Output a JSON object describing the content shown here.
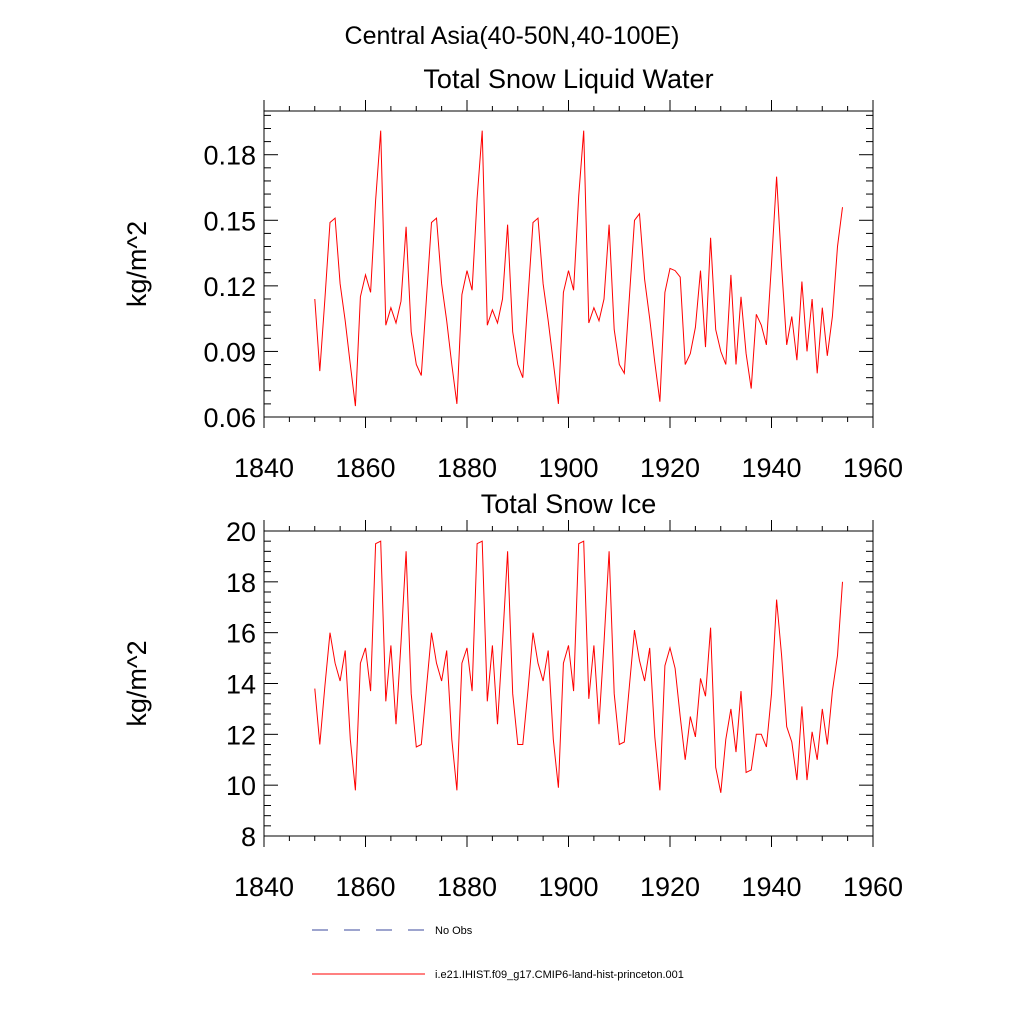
{
  "main_title": "Central Asia(40-50N,40-100E)",
  "legend": {
    "entries": [
      {
        "label": "No Obs",
        "color": "#3b4a9e",
        "style": "dashed"
      },
      {
        "label": "i.e21.IHIST.f09_g17.CMIP6-land-hist-princeton.001",
        "color": "#ff0000",
        "style": "solid"
      }
    ]
  },
  "chart_data": [
    {
      "type": "line",
      "title": "Total Snow Liquid Water",
      "xlabel": "",
      "ylabel": "kg/m^2",
      "xlim": [
        1840,
        1960
      ],
      "ylim": [
        0.06,
        0.2
      ],
      "xticks": [
        1840,
        1860,
        1880,
        1900,
        1920,
        1940,
        1960
      ],
      "xtick_labels": [
        "1840",
        "1860",
        "1880",
        "1900",
        "1920",
        "1940",
        "1960"
      ],
      "yticks": [
        0.06,
        0.09,
        0.12,
        0.15,
        0.18
      ],
      "ytick_labels": [
        "0.06",
        "0.09",
        "0.12",
        "0.15",
        "0.18"
      ],
      "grid": false,
      "series": [
        {
          "color": "#ff0000",
          "x": [
            1850,
            1851,
            1852,
            1853,
            1854,
            1855,
            1856,
            1857,
            1858,
            1859,
            1860,
            1861,
            1862,
            1863,
            1864,
            1865,
            1866,
            1867,
            1868,
            1869,
            1870,
            1871,
            1872,
            1873,
            1874,
            1875,
            1876,
            1877,
            1878,
            1879,
            1880,
            1881,
            1882,
            1883,
            1884,
            1885,
            1886,
            1887,
            1888,
            1889,
            1890,
            1891,
            1892,
            1893,
            1894,
            1895,
            1896,
            1897,
            1898,
            1899,
            1900,
            1901,
            1902,
            1903,
            1904,
            1905,
            1906,
            1907,
            1908,
            1909,
            1910,
            1911,
            1912,
            1913,
            1914,
            1915,
            1916,
            1917,
            1918,
            1919,
            1920,
            1921,
            1922,
            1923,
            1924,
            1925,
            1926,
            1927,
            1928,
            1929,
            1930,
            1931,
            1932,
            1933,
            1934,
            1935,
            1936,
            1937,
            1938,
            1939,
            1940,
            1941,
            1942,
            1943,
            1944,
            1945,
            1946,
            1947,
            1948,
            1949,
            1950,
            1951,
            1952,
            1953,
            1954
          ],
          "values": [
            0.114,
            0.081,
            0.114,
            0.149,
            0.151,
            0.121,
            0.104,
            0.084,
            0.065,
            0.115,
            0.125,
            0.117,
            0.159,
            0.191,
            0.102,
            0.11,
            0.103,
            0.113,
            0.147,
            0.099,
            0.084,
            0.079,
            0.114,
            0.149,
            0.151,
            0.121,
            0.104,
            0.084,
            0.066,
            0.116,
            0.127,
            0.118,
            0.16,
            0.191,
            0.102,
            0.109,
            0.103,
            0.114,
            0.148,
            0.099,
            0.084,
            0.078,
            0.114,
            0.149,
            0.151,
            0.121,
            0.104,
            0.085,
            0.066,
            0.117,
            0.127,
            0.118,
            0.161,
            0.191,
            0.103,
            0.11,
            0.104,
            0.114,
            0.148,
            0.1,
            0.084,
            0.08,
            0.115,
            0.15,
            0.153,
            0.123,
            0.105,
            0.085,
            0.067,
            0.117,
            0.128,
            0.127,
            0.124,
            0.084,
            0.089,
            0.101,
            0.127,
            0.092,
            0.142,
            0.1,
            0.09,
            0.084,
            0.125,
            0.084,
            0.115,
            0.089,
            0.073,
            0.107,
            0.102,
            0.093,
            0.13,
            0.17,
            0.129,
            0.093,
            0.106,
            0.086,
            0.122,
            0.09,
            0.114,
            0.08,
            0.11,
            0.088,
            0.106,
            0.138,
            0.156
          ]
        }
      ]
    },
    {
      "type": "line",
      "title": "Total Snow Ice",
      "xlabel": "",
      "ylabel": "kg/m^2",
      "xlim": [
        1840,
        1960
      ],
      "ylim": [
        8,
        20
      ],
      "xticks": [
        1840,
        1860,
        1880,
        1900,
        1920,
        1940,
        1960
      ],
      "xtick_labels": [
        "1840",
        "1860",
        "1880",
        "1900",
        "1920",
        "1940",
        "1960"
      ],
      "yticks": [
        8,
        10,
        12,
        14,
        16,
        18,
        20
      ],
      "ytick_labels": [
        "8",
        "10",
        "12",
        "14",
        "16",
        "18",
        "20"
      ],
      "grid": false,
      "series": [
        {
          "color": "#ff0000",
          "x": [
            1850,
            1851,
            1852,
            1853,
            1854,
            1855,
            1856,
            1857,
            1858,
            1859,
            1860,
            1861,
            1862,
            1863,
            1864,
            1865,
            1866,
            1867,
            1868,
            1869,
            1870,
            1871,
            1872,
            1873,
            1874,
            1875,
            1876,
            1877,
            1878,
            1879,
            1880,
            1881,
            1882,
            1883,
            1884,
            1885,
            1886,
            1887,
            1888,
            1889,
            1890,
            1891,
            1892,
            1893,
            1894,
            1895,
            1896,
            1897,
            1898,
            1899,
            1900,
            1901,
            1902,
            1903,
            1904,
            1905,
            1906,
            1907,
            1908,
            1909,
            1910,
            1911,
            1912,
            1913,
            1914,
            1915,
            1916,
            1917,
            1918,
            1919,
            1920,
            1921,
            1922,
            1923,
            1924,
            1925,
            1926,
            1927,
            1928,
            1929,
            1930,
            1931,
            1932,
            1933,
            1934,
            1935,
            1936,
            1937,
            1938,
            1939,
            1940,
            1941,
            1942,
            1943,
            1944,
            1945,
            1946,
            1947,
            1948,
            1949,
            1950,
            1951,
            1952,
            1953,
            1954
          ],
          "values": [
            13.8,
            11.6,
            13.9,
            16.0,
            14.8,
            14.1,
            15.3,
            11.8,
            9.8,
            14.8,
            15.4,
            13.7,
            19.5,
            19.6,
            13.3,
            15.5,
            12.4,
            15.6,
            19.2,
            13.6,
            11.5,
            11.6,
            13.8,
            16.0,
            14.8,
            14.1,
            15.3,
            11.8,
            9.8,
            14.8,
            15.4,
            13.7,
            19.5,
            19.6,
            13.3,
            15.5,
            12.4,
            15.6,
            19.2,
            13.6,
            11.6,
            11.6,
            13.7,
            16.0,
            14.8,
            14.1,
            15.3,
            11.8,
            9.9,
            14.8,
            15.5,
            13.7,
            19.5,
            19.6,
            13.4,
            15.5,
            12.4,
            15.6,
            19.2,
            13.6,
            11.6,
            11.7,
            13.9,
            16.1,
            14.9,
            14.1,
            15.4,
            11.9,
            9.8,
            14.7,
            15.4,
            14.6,
            12.7,
            11.0,
            12.7,
            11.9,
            14.2,
            13.5,
            16.2,
            10.7,
            9.7,
            11.8,
            13.0,
            11.3,
            13.7,
            10.5,
            10.6,
            12.0,
            12.0,
            11.5,
            13.6,
            17.3,
            15.1,
            12.3,
            11.7,
            10.2,
            13.1,
            10.2,
            12.1,
            11.0,
            13.0,
            11.6,
            13.7,
            15.1,
            18.0
          ]
        }
      ]
    }
  ]
}
